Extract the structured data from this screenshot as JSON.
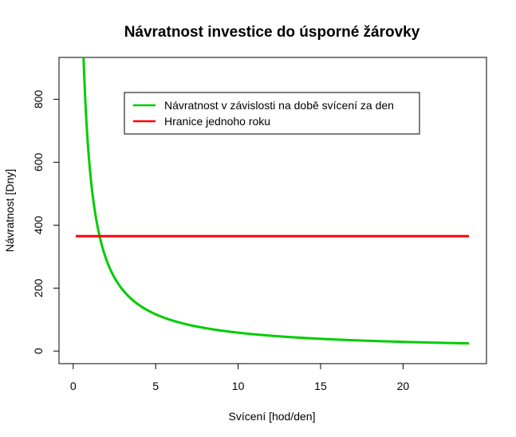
{
  "chart_data": {
    "type": "line",
    "title": "Návratnost investice do úsporné žárovky",
    "xlabel": "Svícení [hod/den]",
    "ylabel": "Návratnost [Dny]",
    "xlim": [
      -0.86,
      25.06
    ],
    "ylim": [
      -40,
      933
    ],
    "x_ticks": [
      0,
      5,
      10,
      15,
      20
    ],
    "y_ticks": [
      0,
      200,
      400,
      600,
      800
    ],
    "grid": false,
    "legend_position": "top-right",
    "series": [
      {
        "name": "Návratnost v závislosti na době svícení za den",
        "color": "#00cc00",
        "formula": "y = 584 / x",
        "x_range": [
          0.6,
          24
        ],
        "sample_points": [
          [
            1,
            584
          ],
          [
            2,
            292
          ],
          [
            5,
            117
          ],
          [
            10,
            58
          ],
          [
            15,
            39
          ],
          [
            20,
            29
          ],
          [
            24,
            24
          ]
        ]
      },
      {
        "name": "Hranice jednoho roku",
        "color": "#ff0000",
        "x": [
          0.15,
          24
        ],
        "values": [
          365,
          365
        ]
      }
    ]
  }
}
